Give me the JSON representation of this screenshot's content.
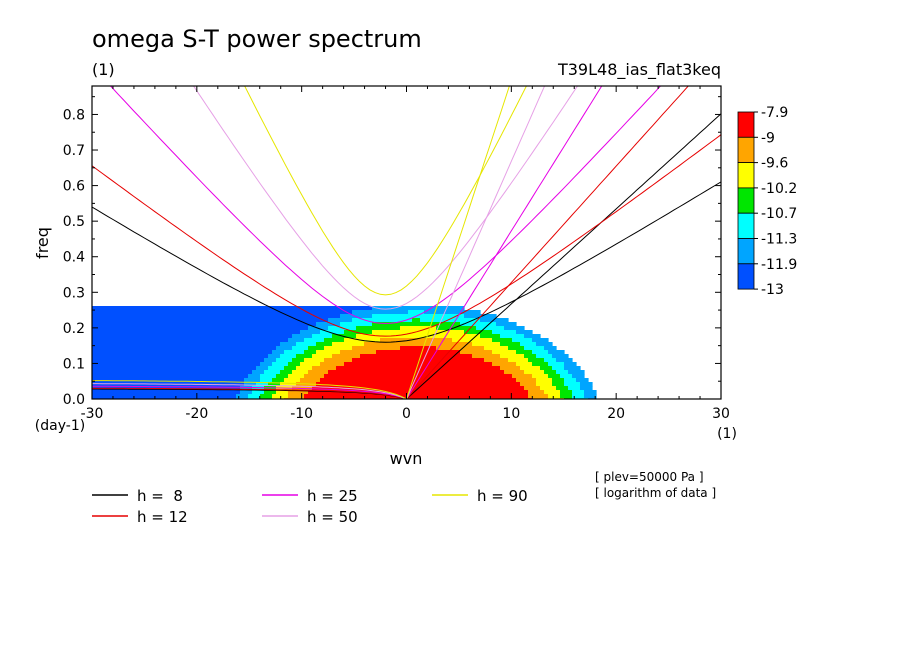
{
  "chart_data": {
    "type": "heatmap",
    "title": "omega S-T power spectrum",
    "subtitle_left": "(1)",
    "subtitle_right": "T39L48_ias_flat3keq",
    "xlabel": "wvn",
    "ylabel": "freq",
    "x_unit_label": "(1)",
    "y_unit_label": "(day-1)",
    "xlim": [
      -30,
      30
    ],
    "ylim": [
      0,
      0.88
    ],
    "x_ticks": [
      -30,
      -20,
      -10,
      0,
      10,
      20,
      30
    ],
    "x_tick_labels": [
      "-30",
      "-20",
      "-10",
      "0",
      "10",
      "20",
      "30"
    ],
    "y_ticks": [
      0,
      0.1,
      0.2,
      0.3,
      0.4,
      0.5,
      0.6,
      0.7,
      0.8
    ],
    "y_tick_labels": [
      "0.0",
      "0.1",
      "0.2",
      "0.3",
      "0.4",
      "0.5",
      "0.6",
      "0.7",
      "0.8"
    ],
    "colorbar": {
      "labels": [
        "-7.9",
        "-9",
        "-9.6",
        "-10.2",
        "-10.7",
        "-11.3",
        "-11.9",
        "-13"
      ],
      "colors": [
        "#ff0000",
        "#ffa500",
        "#ffff00",
        "#00e600",
        "#00ffff",
        "#00a5ff",
        "#0050ff"
      ]
    },
    "contour_levels": [
      -9,
      -9.6,
      -10.2,
      -10.7,
      -11.3,
      -11.9
    ],
    "dispersion_curves": [
      {
        "label": "h =  8",
        "h": 8,
        "color": "#000000"
      },
      {
        "label": "h = 12",
        "h": 12,
        "color": "#e60000"
      },
      {
        "label": "h = 25",
        "h": 25,
        "color": "#e600e6"
      },
      {
        "label": "h = 50",
        "h": 50,
        "color": "#e6a0e6"
      },
      {
        "label": "h = 90",
        "h": 90,
        "color": "#e6e600"
      }
    ],
    "annotations": [
      "[ plev=50000 Pa ]",
      "[ logarithm of data ]"
    ]
  }
}
